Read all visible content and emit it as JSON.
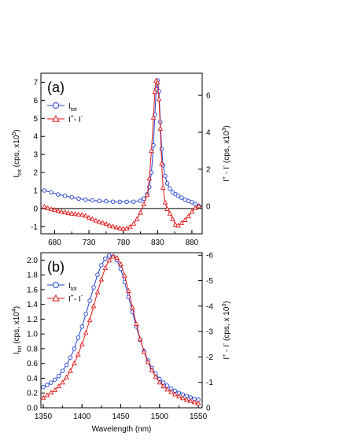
{
  "chart_data": [
    {
      "type": "line",
      "panel_label": "(a)",
      "xlim": [
        660,
        895
      ],
      "xticks": [
        680,
        730,
        780,
        830,
        880
      ],
      "grid": false,
      "legend_position": "top-left",
      "left_axis": {
        "label": "I",
        "label_sub": "tot",
        "label_rest": " (cps, x10",
        "label_sup": "5",
        "label_close": ")",
        "ylim": [
          -1.4,
          7.5
        ],
        "ticks": [
          -1,
          0,
          1,
          2,
          3,
          4,
          5,
          6,
          7
        ]
      },
      "right_axis": {
        "label_parts": [
          "I",
          "+",
          " - I",
          "-",
          " (cps, x10",
          "3",
          ")"
        ],
        "ylim": [
          -1.5,
          7.2
        ],
        "ticks": [
          0,
          2,
          4,
          6
        ]
      },
      "zero_line": true,
      "series": [
        {
          "name": "I",
          "name_sub": "tot",
          "axis": "left",
          "marker": "circle",
          "color": "#2040d0",
          "x": [
            665,
            675,
            685,
            695,
            705,
            715,
            725,
            735,
            745,
            755,
            765,
            775,
            785,
            795,
            805,
            810,
            815,
            818,
            821,
            824,
            826,
            828,
            830,
            832,
            834,
            836,
            838,
            841,
            844,
            848,
            852,
            856,
            860,
            865,
            870,
            875,
            880,
            885,
            890
          ],
          "y": [
            1.0,
            0.9,
            0.78,
            0.7,
            0.62,
            0.55,
            0.49,
            0.45,
            0.42,
            0.4,
            0.38,
            0.37,
            0.37,
            0.38,
            0.43,
            0.55,
            0.8,
            1.2,
            2.0,
            3.5,
            5.2,
            6.6,
            7.1,
            6.5,
            4.8,
            3.3,
            2.4,
            1.8,
            1.4,
            1.1,
            0.9,
            0.8,
            0.7,
            0.6,
            0.5,
            0.42,
            0.35,
            0.25,
            0.15
          ]
        },
        {
          "name": "I",
          "name_sup": "+",
          "name_mid": "- I",
          "name_sup2": "-",
          "axis": "right",
          "marker": "triangle",
          "color": "#e01818",
          "x": [
            665,
            670,
            675,
            680,
            685,
            690,
            695,
            700,
            705,
            710,
            715,
            720,
            725,
            730,
            735,
            740,
            745,
            750,
            755,
            760,
            765,
            770,
            775,
            780,
            785,
            790,
            795,
            800,
            805,
            810,
            815,
            818,
            821,
            824,
            826,
            828,
            830,
            832,
            834,
            836,
            838,
            841,
            844,
            848,
            852,
            856,
            860,
            865,
            870,
            875,
            880,
            885,
            890
          ],
          "y": [
            -0.02,
            -0.1,
            -0.16,
            -0.2,
            -0.26,
            -0.3,
            -0.33,
            -0.37,
            -0.4,
            -0.42,
            -0.45,
            -0.47,
            -0.52,
            -0.62,
            -0.7,
            -0.78,
            -0.85,
            -0.9,
            -0.97,
            -1.05,
            -1.1,
            -1.15,
            -1.2,
            -1.22,
            -1.2,
            -1.12,
            -0.95,
            -0.7,
            -0.35,
            0.1,
            0.6,
            1.5,
            3.0,
            4.8,
            6.2,
            6.8,
            6.7,
            5.8,
            4.2,
            2.3,
            1.0,
            0.2,
            -0.15,
            -0.4,
            -0.7,
            -1.0,
            -1.05,
            -0.92,
            -0.75,
            -0.55,
            -0.3,
            -0.1,
            0.0
          ]
        }
      ]
    },
    {
      "type": "line",
      "panel_label": "(b)",
      "xlabel": "Wavelength (nm)",
      "xlim": [
        1347,
        1555
      ],
      "xticks": [
        1350,
        1400,
        1450,
        1500,
        1550
      ],
      "grid": false,
      "legend_position": "top-left",
      "left_axis": {
        "label": "I",
        "label_sub": "tot",
        "label_rest": " (cps, x10",
        "label_sup": "4",
        "label_close": ")",
        "ylim": [
          0,
          2.1
        ],
        "ticks": [
          0.0,
          0.2,
          0.4,
          0.6,
          0.8,
          1.0,
          1.2,
          1.4,
          1.6,
          1.8,
          2.0
        ]
      },
      "right_axis": {
        "label_parts": [
          "I",
          "+",
          " - I",
          "-",
          " (cps, x 10",
          "3",
          ")"
        ],
        "ylim": [
          0,
          -6.1
        ],
        "ticks": [
          0,
          -1,
          -2,
          -3,
          -4,
          -5,
          -6
        ]
      },
      "series": [
        {
          "name": "I",
          "name_sub": "tot",
          "axis": "left",
          "marker": "circle",
          "color": "#2040d0",
          "x": [
            1350,
            1355,
            1360,
            1365,
            1370,
            1375,
            1380,
            1385,
            1390,
            1395,
            1400,
            1405,
            1410,
            1415,
            1420,
            1425,
            1430,
            1435,
            1440,
            1445,
            1450,
            1455,
            1460,
            1465,
            1470,
            1475,
            1480,
            1485,
            1490,
            1495,
            1500,
            1505,
            1510,
            1515,
            1520,
            1525,
            1530,
            1535,
            1540,
            1545,
            1550
          ],
          "y": [
            0.28,
            0.31,
            0.34,
            0.38,
            0.43,
            0.5,
            0.58,
            0.68,
            0.8,
            0.95,
            1.1,
            1.27,
            1.45,
            1.63,
            1.8,
            1.93,
            2.02,
            2.06,
            2.05,
            2.0,
            1.88,
            1.7,
            1.5,
            1.3,
            1.1,
            0.92,
            0.77,
            0.64,
            0.54,
            0.46,
            0.39,
            0.34,
            0.3,
            0.26,
            0.23,
            0.2,
            0.18,
            0.16,
            0.14,
            0.12,
            0.11
          ]
        },
        {
          "name": "I",
          "name_sup": "+",
          "name_mid": "- I",
          "name_sup2": "-",
          "axis": "right",
          "marker": "triangle",
          "color": "#e01818",
          "x": [
            1350,
            1355,
            1360,
            1365,
            1370,
            1375,
            1380,
            1385,
            1390,
            1395,
            1400,
            1405,
            1410,
            1415,
            1420,
            1425,
            1430,
            1435,
            1440,
            1445,
            1450,
            1455,
            1460,
            1465,
            1470,
            1475,
            1480,
            1485,
            1490,
            1495,
            1500,
            1505,
            1510,
            1515,
            1520,
            1525,
            1530,
            1535,
            1540,
            1545,
            1550
          ],
          "y": [
            -0.4,
            -0.5,
            -0.6,
            -0.7,
            -0.85,
            -1.0,
            -1.2,
            -1.45,
            -1.75,
            -2.1,
            -2.5,
            -2.95,
            -3.45,
            -4.0,
            -4.55,
            -5.05,
            -5.5,
            -5.8,
            -5.95,
            -5.9,
            -5.65,
            -5.2,
            -4.6,
            -3.95,
            -3.3,
            -2.7,
            -2.2,
            -1.8,
            -1.48,
            -1.22,
            -1.0,
            -0.85,
            -0.72,
            -0.62,
            -0.53,
            -0.45,
            -0.38,
            -0.32,
            -0.27,
            -0.22,
            -0.18
          ]
        }
      ]
    }
  ]
}
